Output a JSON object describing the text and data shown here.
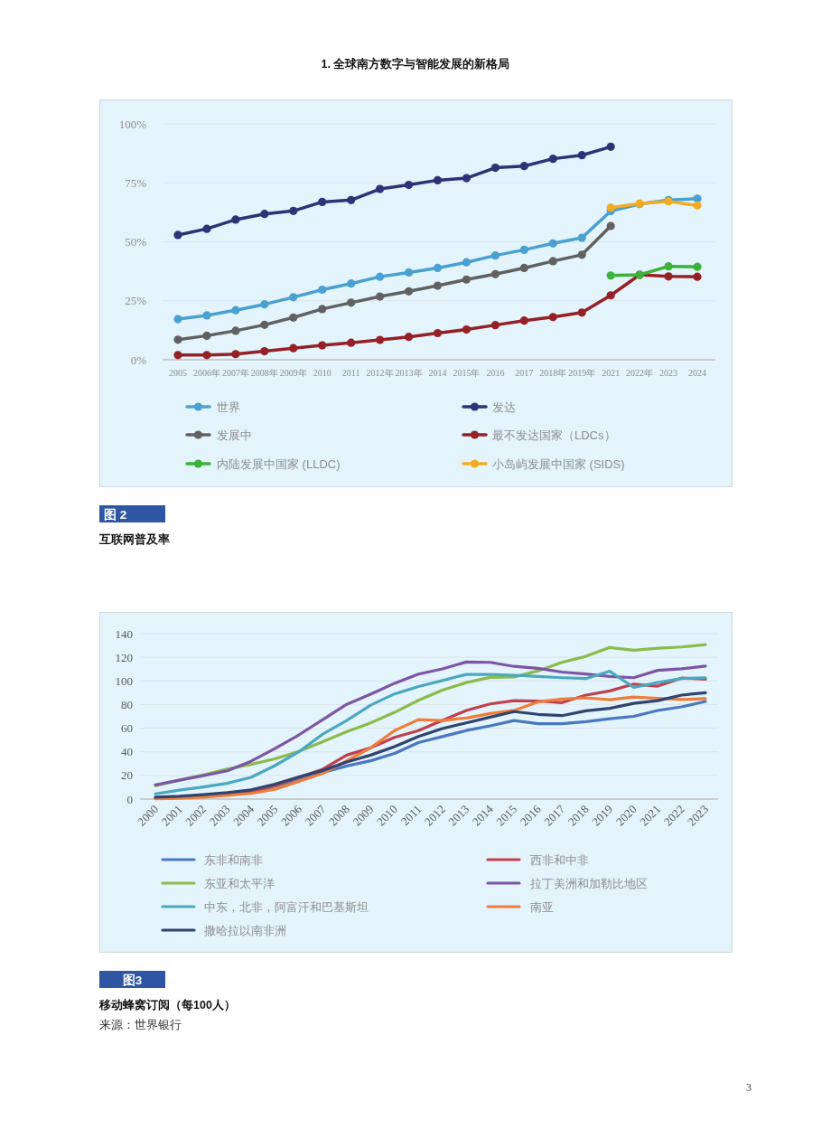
{
  "chart_data": [
    {
      "type": "line",
      "title": "互联网普及率",
      "annotations": [
        "1. 全球南方数字与智能发展的新格局",
        "图 2"
      ],
      "categories": [
        "2005",
        "2006年",
        "2007年",
        "2008年",
        "2009年",
        "2010",
        "2011",
        "2012年",
        "2013年",
        "2014",
        "2015年",
        "2016",
        "2017",
        "2018年",
        "2019年",
        "2021",
        "2022年",
        "2023",
        "2024"
      ],
      "ylim": [
        0,
        100
      ],
      "yticks": [
        {
          "value": 0,
          "label": "0%"
        },
        {
          "value": 25,
          "label": "25%"
        },
        {
          "value": 50,
          "label": "50%"
        },
        {
          "value": 75,
          "label": "75%"
        },
        {
          "value": 100,
          "label": "100%"
        }
      ],
      "grid": "y",
      "legend": "bottom",
      "marker": "circle",
      "line_style": "solid",
      "series": [
        {
          "name": "世界",
          "color": "#4aa0d0",
          "values": [
            17.2,
            18.8,
            21.0,
            23.5,
            26.5,
            29.7,
            32.3,
            35.2,
            37.0,
            38.9,
            41.3,
            44.2,
            46.6,
            49.3,
            51.7,
            63.0,
            66.0,
            67.7,
            68.3
          ]
        },
        {
          "name": "发达",
          "color": "#2e3276",
          "values": [
            52.9,
            55.5,
            59.4,
            61.8,
            63.1,
            66.9,
            67.7,
            72.4,
            74.1,
            76.1,
            77.0,
            81.4,
            82.1,
            85.2,
            86.7,
            90.3,
            null,
            null,
            null
          ]
        },
        {
          "name": "发展中",
          "color": "#616161",
          "values": [
            8.5,
            10.2,
            12.3,
            14.8,
            17.9,
            21.5,
            24.2,
            26.8,
            29.0,
            31.4,
            34.0,
            36.3,
            38.9,
            41.8,
            44.5,
            56.7,
            null,
            null,
            null
          ]
        },
        {
          "name": "最不发达国家（LDCs）",
          "color": "#952127",
          "values": [
            2.0,
            2.0,
            2.4,
            3.6,
            4.9,
            6.1,
            7.2,
            8.4,
            9.7,
            11.3,
            12.8,
            14.7,
            16.6,
            18.1,
            20.0,
            27.3,
            36.0,
            35.3,
            35.2
          ]
        },
        {
          "name": "内陆发展中国家 (LLDC)",
          "color": "#3db23a",
          "values": [
            null,
            null,
            null,
            null,
            null,
            null,
            null,
            null,
            null,
            null,
            null,
            null,
            null,
            null,
            null,
            35.7,
            36.0,
            39.6,
            39.4
          ]
        },
        {
          "name": "小岛屿发展中国家 (SIDS)",
          "color": "#f3ac22",
          "values": [
            null,
            null,
            null,
            null,
            null,
            null,
            null,
            null,
            null,
            null,
            null,
            null,
            null,
            null,
            null,
            64.5,
            66.2,
            67.1,
            65.4
          ]
        }
      ]
    },
    {
      "type": "line",
      "title": "移动蜂窝订阅（每100人）",
      "annotations": [
        "图3",
        "来源：世界银行",
        "3"
      ],
      "categories": [
        "2000",
        "2001",
        "2002",
        "2003",
        "2004",
        "2005",
        "2006",
        "2007",
        "2008",
        "2009",
        "2010",
        "2011",
        "2012",
        "2013",
        "2014",
        "2015",
        "2016",
        "2017",
        "2018",
        "2019",
        "2020",
        "2021",
        "2022",
        "2023"
      ],
      "ylim": [
        0,
        140
      ],
      "yticks": [
        0,
        20,
        40,
        60,
        80,
        100,
        120,
        140
      ],
      "grid": "y",
      "legend": "bottom",
      "line_style": "solid",
      "series": [
        {
          "name": "东非和南非",
          "color": "#4a78c0",
          "values": [
            0.7,
            1.4,
            2.4,
            3.8,
            5.8,
            11,
            17,
            22.5,
            28,
            32.4,
            38.6,
            47.8,
            52.9,
            58,
            62,
            66.5,
            63.8,
            63.8,
            65.5,
            68,
            70,
            75,
            78,
            82.6
          ]
        },
        {
          "name": "西非和中非",
          "color": "#c0404f",
          "values": [
            0.7,
            1.7,
            2.7,
            4,
            6.5,
            11.3,
            18.4,
            25.3,
            37.2,
            43.3,
            52.2,
            58,
            66.5,
            75,
            80.5,
            83.3,
            83,
            81.6,
            88,
            91.5,
            97.3,
            95.6,
            102.4,
            101.4
          ]
        },
        {
          "name": "东亚和太平洋",
          "color": "#8bbb4b",
          "values": [
            11.3,
            16,
            20.5,
            25.3,
            29.4,
            34,
            40.3,
            48.5,
            57,
            64.5,
            73.4,
            83.6,
            92.2,
            98.6,
            103,
            103.4,
            108.5,
            115.7,
            120.8,
            128.3,
            126,
            127.6,
            128.7,
            130.7
          ]
        },
        {
          "name": "拉丁美洲和加勒比地区",
          "color": "#7d55a6",
          "values": [
            12,
            16,
            19.8,
            23.9,
            32,
            42.7,
            54.3,
            67.2,
            80.2,
            88.7,
            98,
            105.8,
            110.2,
            116,
            115.7,
            112.3,
            110.6,
            107.5,
            105.8,
            103.8,
            102.7,
            108.9,
            110.2,
            112.6
          ]
        },
        {
          "name": "中东，北非，阿富汗和巴基斯坦",
          "color": "#4aa8c0",
          "values": [
            4.4,
            7.5,
            10.2,
            13.3,
            18.4,
            28.3,
            40,
            55,
            66.5,
            79.5,
            89,
            95.2,
            100.3,
            105.5,
            105.5,
            104.8,
            103.8,
            102.7,
            102,
            108.2,
            94.5,
            98.6,
            102,
            102.7
          ]
        },
        {
          "name": "南亚",
          "color": "#ee7d3a",
          "values": [
            0.3,
            0.7,
            1.7,
            3.1,
            4.8,
            8.2,
            15,
            21.8,
            32.4,
            43.3,
            58,
            67.2,
            66.5,
            68.6,
            72.4,
            75,
            82.3,
            84.6,
            85.7,
            84,
            86.3,
            85.3,
            84.3,
            85
          ]
        },
        {
          "name": "撒哈拉以南非洲",
          "color": "#2f4470",
          "values": [
            1.7,
            2.4,
            3.8,
            5.5,
            7.8,
            12.6,
            18.8,
            24.2,
            31.4,
            37.2,
            44.4,
            52.9,
            59.7,
            64.5,
            69.3,
            74,
            71.7,
            70.6,
            74.7,
            76.8,
            81,
            83.3,
            88,
            90
          ]
        }
      ]
    }
  ]
}
